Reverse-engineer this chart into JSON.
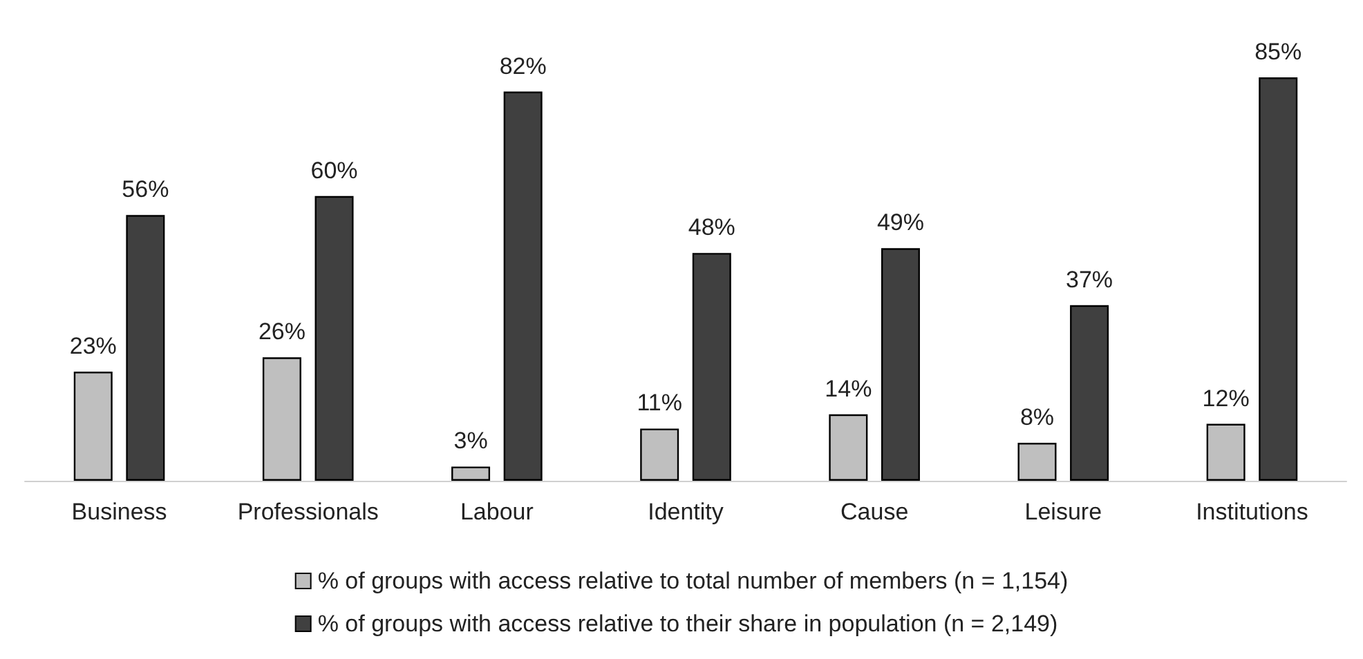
{
  "chart_data": {
    "type": "bar",
    "categories": [
      "Business",
      "Professionals",
      "Labour",
      "Identity",
      "Cause",
      "Leisure",
      "Institutions"
    ],
    "series": [
      {
        "name": "% of groups with access relative to total number of members (n = 1,154)",
        "color": "#bfbfbf",
        "values": [
          23,
          26,
          3,
          11,
          14,
          8,
          12
        ],
        "value_labels": [
          "23%",
          "26%",
          "3%",
          "11%",
          "14%",
          "8%",
          "12%"
        ]
      },
      {
        "name": "% of groups with access relative to their share in population (n = 2,149)",
        "color": "#404040",
        "values": [
          56,
          60,
          82,
          48,
          49,
          37,
          85
        ],
        "value_labels": [
          "56%",
          "60%",
          "82%",
          "48%",
          "49%",
          "37%",
          "85%"
        ]
      }
    ],
    "legend": "bottom"
  }
}
